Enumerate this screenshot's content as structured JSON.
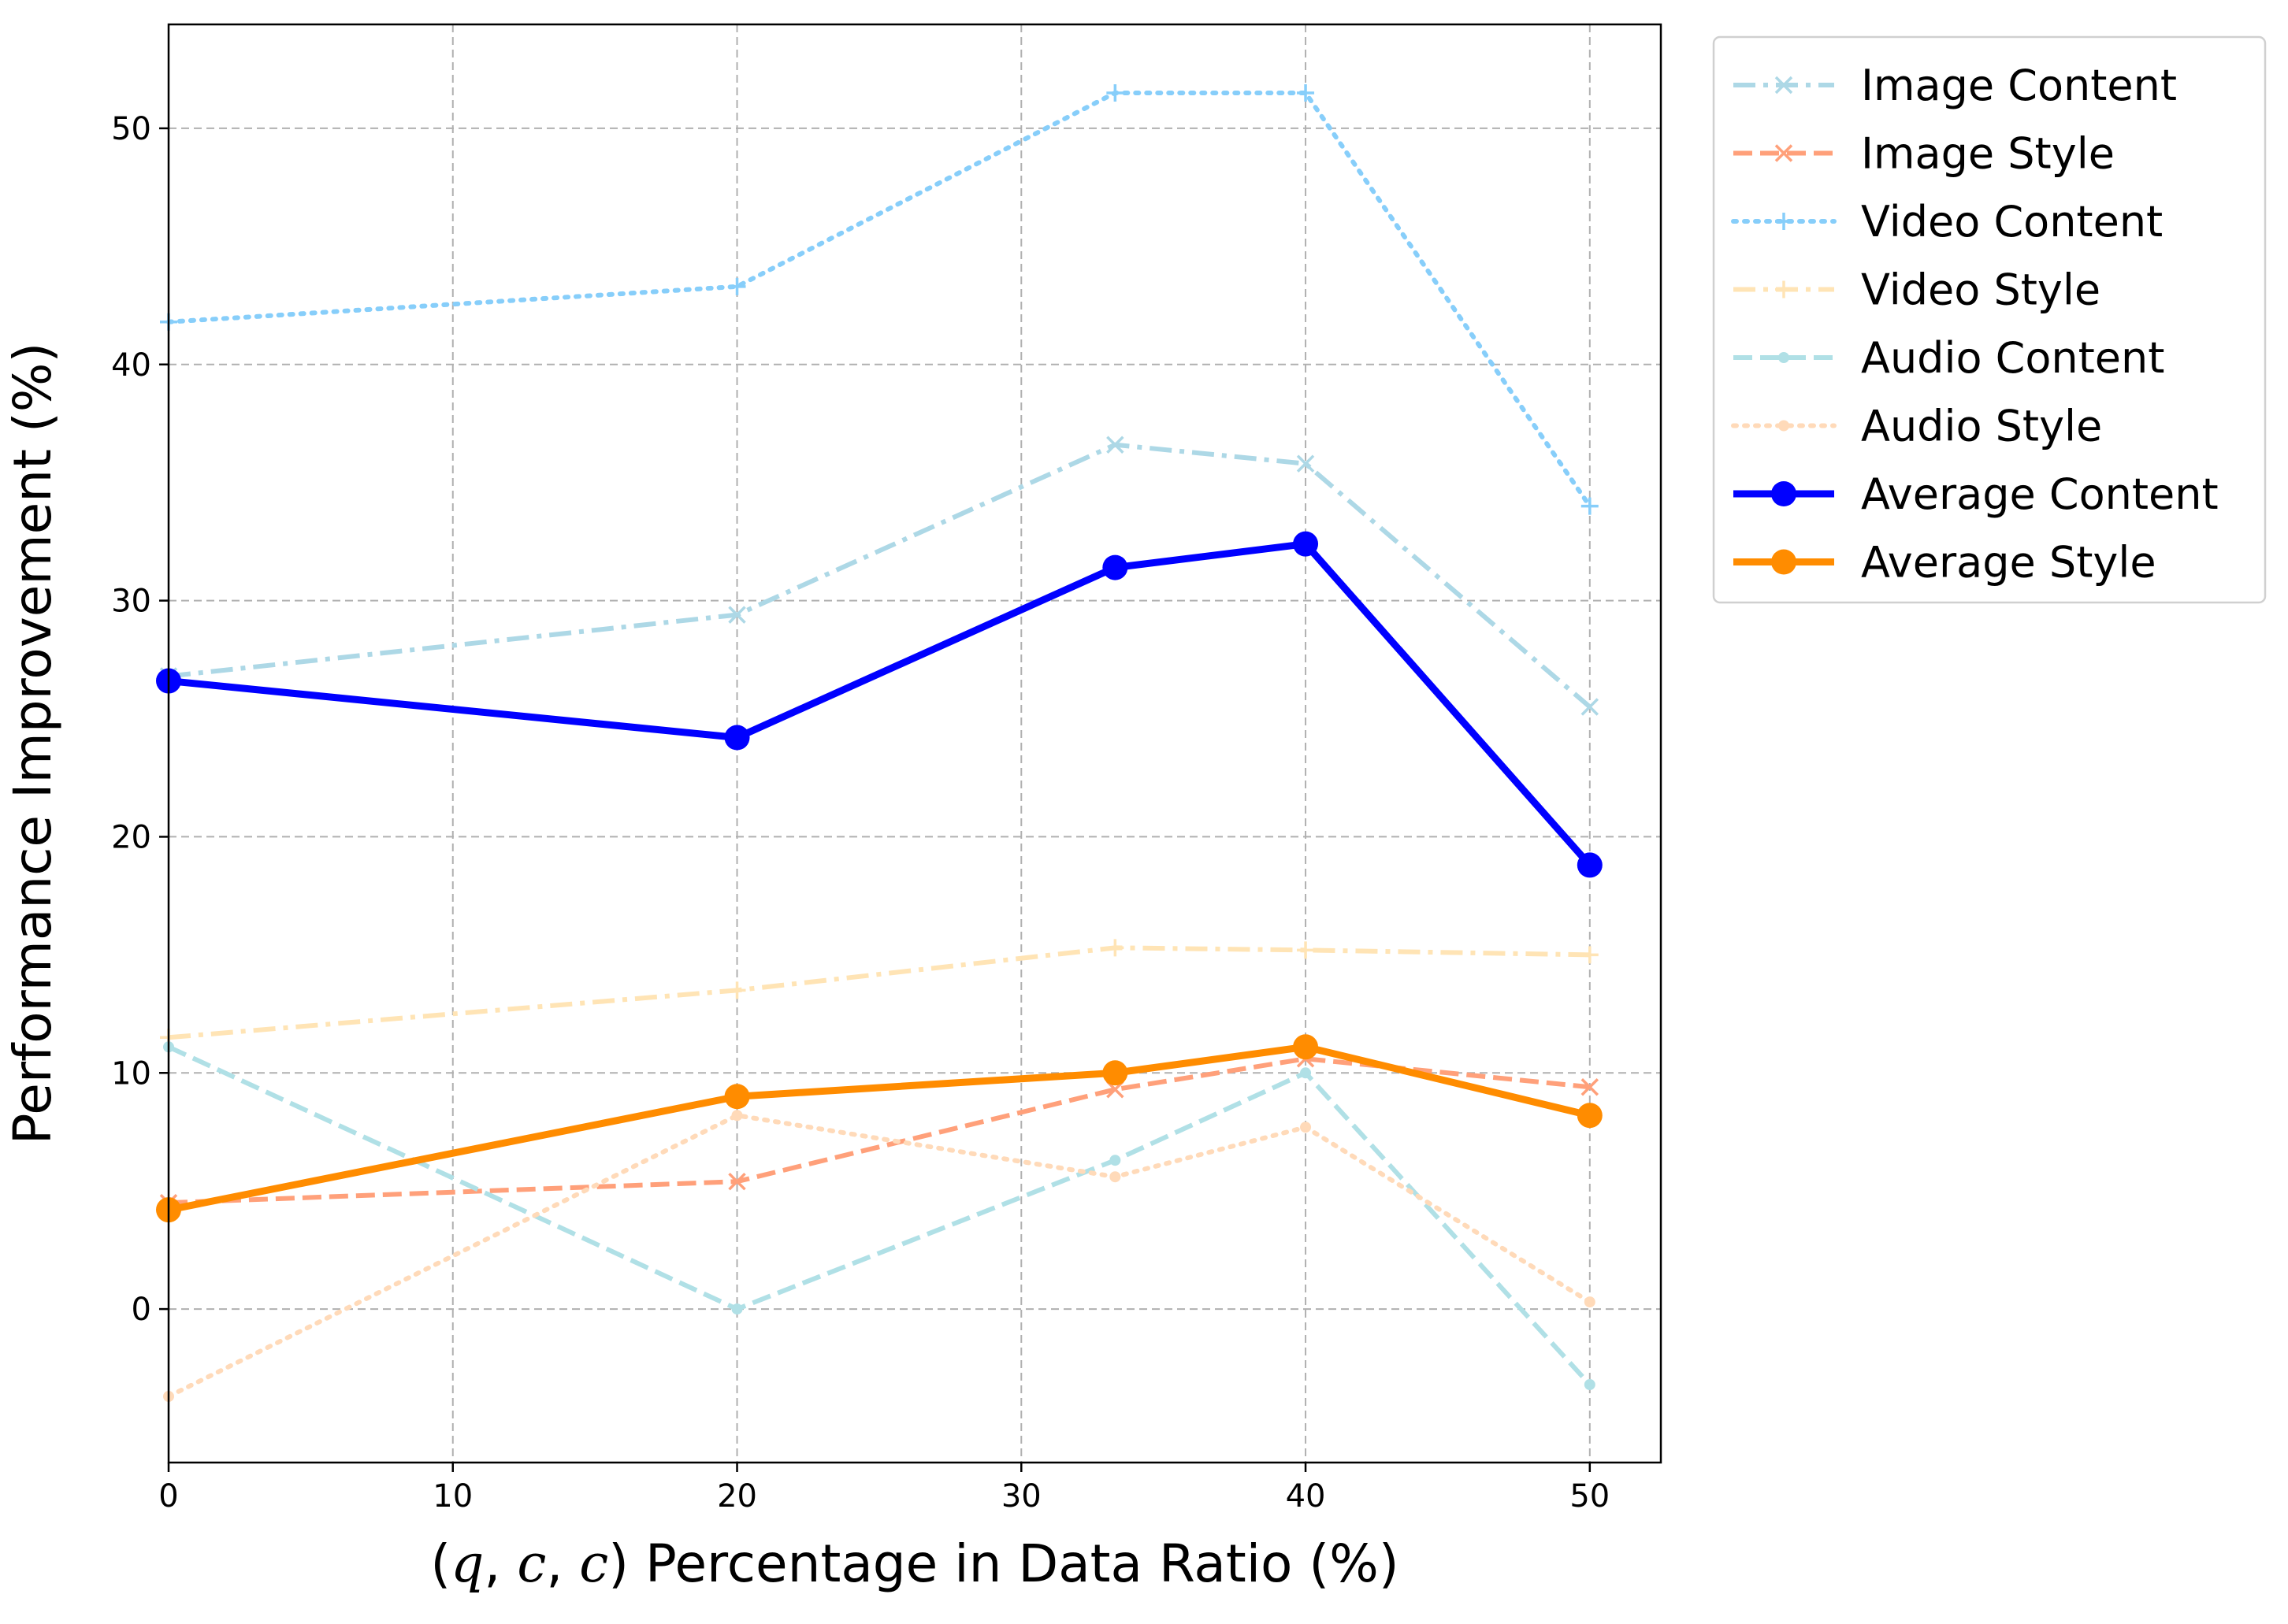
{
  "chart_data": {
    "type": "line",
    "xlabel_parts": [
      "(",
      "q",
      ", ",
      "c",
      ", ",
      "c",
      ") Percentage in Data Ratio (%)"
    ],
    "ylabel": "Performance Improvement (%)",
    "xlim": [
      0,
      52.5
    ],
    "ylim": [
      -6.5,
      54.4
    ],
    "xticks": [
      0,
      10,
      20,
      30,
      40,
      50
    ],
    "yticks": [
      0,
      10,
      20,
      30,
      40,
      50
    ],
    "grid": true,
    "legend_position": "outside-top-right",
    "x": [
      0,
      20,
      33.3,
      40,
      50
    ],
    "series": [
      {
        "name": "Image Content",
        "values": [
          26.8,
          29.4,
          36.6,
          35.8,
          25.5
        ],
        "color": "#add8e6",
        "dash": "dashdot",
        "marker": "x",
        "width": 6
      },
      {
        "name": "Image Style",
        "values": [
          4.5,
          5.4,
          9.3,
          10.6,
          9.4
        ],
        "color": "#ffa07a",
        "dash": "dashed",
        "marker": "x",
        "width": 6
      },
      {
        "name": "Video Content",
        "values": [
          41.8,
          43.3,
          51.5,
          51.5,
          34.0
        ],
        "color": "#87cefa",
        "dash": "dotted",
        "marker": "plus",
        "width": 6
      },
      {
        "name": "Video Style",
        "values": [
          11.5,
          13.5,
          15.3,
          15.2,
          15.0
        ],
        "color": "#ffe4b5",
        "dash": "dashdot",
        "marker": "plus",
        "width": 6
      },
      {
        "name": "Audio Content",
        "values": [
          11.1,
          0.0,
          6.3,
          10.0,
          -3.2
        ],
        "color": "#b0e0e6",
        "dash": "dashed",
        "marker": "dot",
        "width": 6
      },
      {
        "name": "Audio Style",
        "values": [
          -3.7,
          8.2,
          5.6,
          7.7,
          0.3
        ],
        "color": "#ffdab9",
        "dash": "dotted",
        "marker": "dot",
        "width": 6
      },
      {
        "name": "Average Content",
        "values": [
          26.6,
          24.2,
          31.4,
          32.4,
          18.8
        ],
        "color": "#0000ff",
        "dash": "solid",
        "marker": "circle",
        "width": 9
      },
      {
        "name": "Average Style",
        "values": [
          4.2,
          9.0,
          10.0,
          11.1,
          8.2
        ],
        "color": "#ff8c00",
        "dash": "solid",
        "marker": "circle",
        "width": 9
      }
    ]
  }
}
